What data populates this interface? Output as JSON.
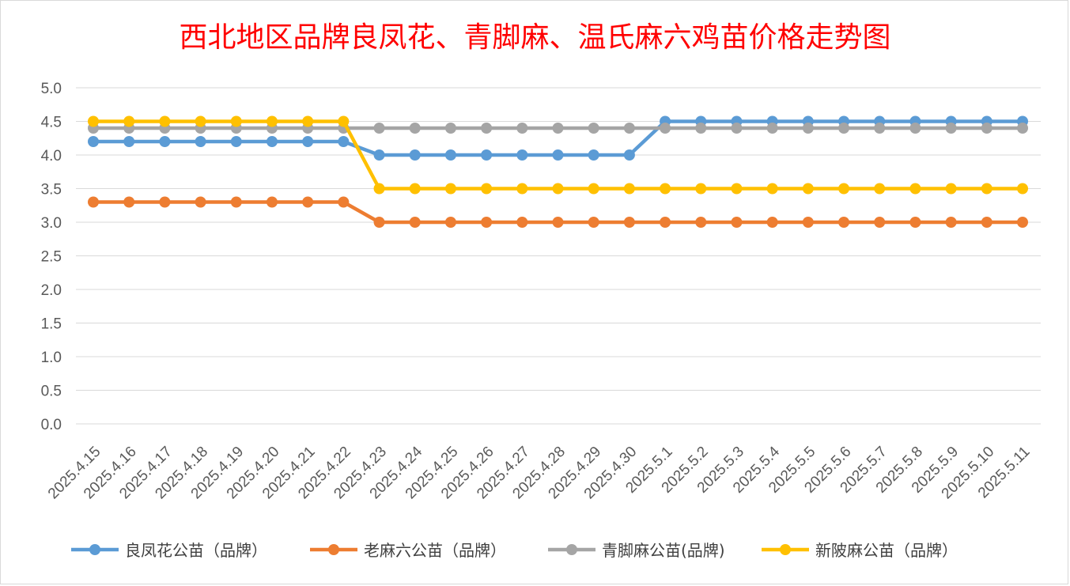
{
  "chart_data": {
    "type": "line",
    "title": "西北地区品牌良凤花、青脚麻、温氏麻六鸡苗价格走势图",
    "xlabel": "",
    "ylabel": "",
    "ylim": [
      0,
      5
    ],
    "y_ticks": [
      "0.0",
      "0.5",
      "1.0",
      "1.5",
      "2.0",
      "2.5",
      "3.0",
      "3.5",
      "4.0",
      "4.5",
      "5.0"
    ],
    "grid": true,
    "legend_position": "bottom",
    "categories": [
      "2025.4.15",
      "2025.4.16",
      "2025.4.17",
      "2025.4.18",
      "2025.4.19",
      "2025.4.20",
      "2025.4.21",
      "2025.4.22",
      "2025.4.23",
      "2025.4.24",
      "2025.4.25",
      "2025.4.26",
      "2025.4.27",
      "2025.4.28",
      "2025.4.29",
      "2025.4.30",
      "2025.5.1",
      "2025.5.2",
      "2025.5.3",
      "2025.5.4",
      "2025.5.5",
      "2025.5.6",
      "2025.5.7",
      "2025.5.8",
      "2025.5.9",
      "2025.5.10",
      "2025.5.11"
    ],
    "series": [
      {
        "name": "良凤花公苗（品牌）",
        "color": "#5b9bd5",
        "values": [
          4.2,
          4.2,
          4.2,
          4.2,
          4.2,
          4.2,
          4.2,
          4.2,
          4.0,
          4.0,
          4.0,
          4.0,
          4.0,
          4.0,
          4.0,
          4.0,
          4.5,
          4.5,
          4.5,
          4.5,
          4.5,
          4.5,
          4.5,
          4.5,
          4.5,
          4.5,
          4.5
        ]
      },
      {
        "name": "老麻六公苗（品牌）",
        "color": "#ed7d31",
        "values": [
          3.3,
          3.3,
          3.3,
          3.3,
          3.3,
          3.3,
          3.3,
          3.3,
          3.0,
          3.0,
          3.0,
          3.0,
          3.0,
          3.0,
          3.0,
          3.0,
          3.0,
          3.0,
          3.0,
          3.0,
          3.0,
          3.0,
          3.0,
          3.0,
          3.0,
          3.0,
          3.0
        ]
      },
      {
        "name": "青脚麻公苗(品牌)",
        "color": "#a5a5a5",
        "values": [
          4.4,
          4.4,
          4.4,
          4.4,
          4.4,
          4.4,
          4.4,
          4.4,
          4.4,
          4.4,
          4.4,
          4.4,
          4.4,
          4.4,
          4.4,
          4.4,
          4.4,
          4.4,
          4.4,
          4.4,
          4.4,
          4.4,
          4.4,
          4.4,
          4.4,
          4.4,
          4.4
        ]
      },
      {
        "name": "新陂麻公苗（品牌）",
        "color": "#ffc000",
        "values": [
          4.5,
          4.5,
          4.5,
          4.5,
          4.5,
          4.5,
          4.5,
          4.5,
          3.5,
          3.5,
          3.5,
          3.5,
          3.5,
          3.5,
          3.5,
          3.5,
          3.5,
          3.5,
          3.5,
          3.5,
          3.5,
          3.5,
          3.5,
          3.5,
          3.5,
          3.5,
          3.5
        ]
      }
    ]
  }
}
